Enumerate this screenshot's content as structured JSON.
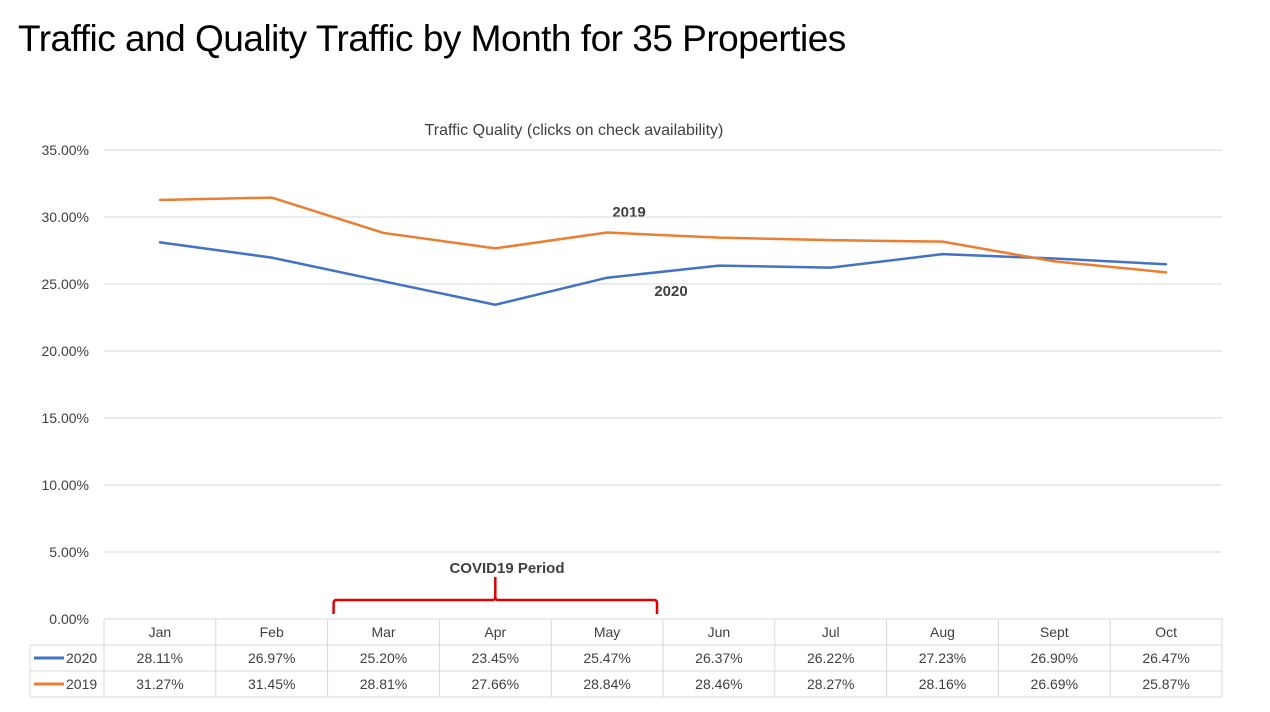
{
  "slide_title": "Traffic and Quality Traffic by Month for 35 Properties",
  "chart_data": {
    "type": "line",
    "title": "Traffic Quality (clicks on check availability)",
    "xlabel": "",
    "ylabel": "",
    "categories": [
      "Jan",
      "Feb",
      "Mar",
      "Apr",
      "May",
      "Jun",
      "Jul",
      "Aug",
      "Sept",
      "Oct"
    ],
    "ylim": [
      0,
      35
    ],
    "yticks": [
      "0.00%",
      "5.00%",
      "10.00%",
      "15.00%",
      "20.00%",
      "25.00%",
      "30.00%",
      "35.00%"
    ],
    "grid": true,
    "legend": "data-table",
    "series": [
      {
        "name": "2020",
        "color": "#4472C4",
        "values": [
          28.11,
          26.97,
          25.2,
          23.45,
          25.47,
          26.37,
          26.22,
          27.23,
          26.9,
          26.47
        ],
        "labels": [
          "28.11%",
          "26.97%",
          "25.20%",
          "23.45%",
          "25.47%",
          "26.37%",
          "26.22%",
          "27.23%",
          "26.90%",
          "26.47%"
        ]
      },
      {
        "name": "2019",
        "color": "#ED7D31",
        "values": [
          31.27,
          31.45,
          28.81,
          27.66,
          28.84,
          28.46,
          28.27,
          28.16,
          26.69,
          25.87
        ],
        "labels": [
          "31.27%",
          "31.45%",
          "28.81%",
          "27.66%",
          "28.84%",
          "28.46%",
          "28.27%",
          "28.16%",
          "26.69%",
          "25.87%"
        ]
      }
    ],
    "annotations": {
      "series_2019": "2019",
      "series_2020": "2020",
      "covid": "COVID19 Period",
      "covid_color": "#E00000",
      "covid_span": [
        "Mar",
        "May"
      ]
    }
  }
}
